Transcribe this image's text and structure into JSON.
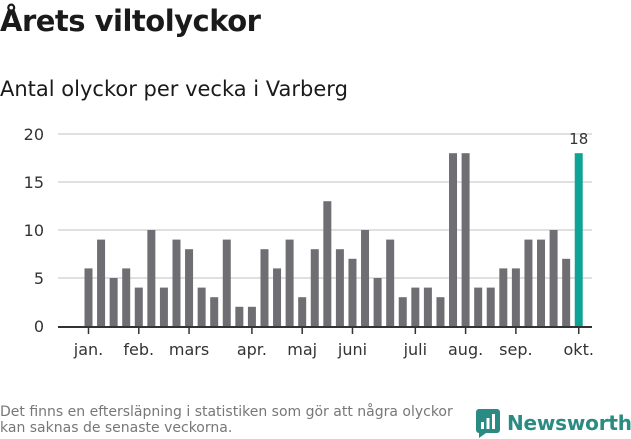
{
  "header": {
    "title": "Årets viltolyckor",
    "subtitle": "Antal olyckor per vecka i Varberg"
  },
  "footer": {
    "note": "Det finns en eftersläpning i statistiken som gör att några olyckor kan saknas de senaste veckorna.",
    "brand": "Newsworthy"
  },
  "colors": {
    "bar": "#6f6e73",
    "highlight": "#0fa396",
    "grid": "#d5d5d5",
    "axis": "#333333",
    "brand": "#2a8b82"
  },
  "chart_data": {
    "type": "bar",
    "title": "Antal olyckor per vecka i Varberg",
    "xlabel": "",
    "ylabel": "",
    "ylim": [
      0,
      20
    ],
    "yticks": [
      0,
      5,
      10,
      15,
      20
    ],
    "grid": true,
    "weeks": [
      1,
      2,
      3,
      4,
      5,
      6,
      7,
      8,
      9,
      10,
      11,
      12,
      13,
      14,
      15,
      16,
      17,
      18,
      19,
      20,
      21,
      22,
      23,
      24,
      25,
      26,
      27,
      28,
      29,
      30,
      31,
      32,
      33,
      34,
      35,
      36,
      37,
      38,
      39,
      40
    ],
    "values": [
      6,
      9,
      5,
      6,
      4,
      10,
      4,
      9,
      8,
      4,
      3,
      9,
      2,
      2,
      8,
      6,
      9,
      3,
      8,
      13,
      8,
      7,
      10,
      5,
      9,
      3,
      4,
      4,
      3,
      18,
      18,
      4,
      4,
      6,
      6,
      9,
      9,
      10,
      7,
      18
    ],
    "highlight_index": 39,
    "highlight_label": "18",
    "month_labels": [
      {
        "label": "jan.",
        "week": 1
      },
      {
        "label": "feb.",
        "week": 5
      },
      {
        "label": "mars",
        "week": 9
      },
      {
        "label": "apr.",
        "week": 14
      },
      {
        "label": "maj",
        "week": 18
      },
      {
        "label": "juni",
        "week": 22
      },
      {
        "label": "juli",
        "week": 27
      },
      {
        "label": "aug.",
        "week": 31
      },
      {
        "label": "sep.",
        "week": 35
      },
      {
        "label": "okt.",
        "week": 40
      }
    ]
  }
}
